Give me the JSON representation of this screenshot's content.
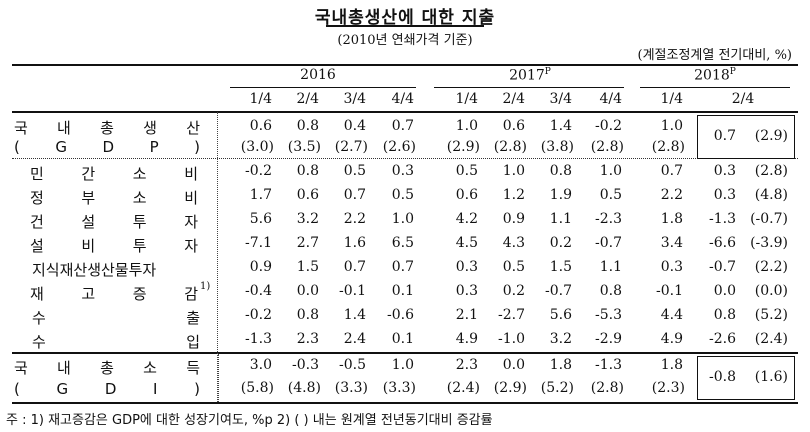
{
  "title": "국내총생산에 대한 지출",
  "subtitle": "(2010년 연쇄가격 기준)",
  "unit_note": "(계절조정계열 전기대비, %)",
  "years": [
    {
      "label": "2016",
      "sup": ""
    },
    {
      "label": "2017",
      "sup": "P"
    },
    {
      "label": "2018",
      "sup": "P"
    }
  ],
  "quarters": [
    "1/4",
    "2/4",
    "3/4",
    "4/4",
    "1/4",
    "2/4",
    "3/4",
    "4/4",
    "1/4",
    "2/4"
  ],
  "gdp": {
    "label1": "국 내 총 생 산",
    "label2": "( G D P )",
    "growth": [
      "0.6",
      "0.8",
      "0.4",
      "0.7",
      "1.0",
      "0.6",
      "1.4",
      "-0.2",
      "1.0"
    ],
    "yoy": [
      "(3.0)",
      "(3.5)",
      "(2.7)",
      "(2.6)",
      "(2.9)",
      "(2.8)",
      "(3.8)",
      "(2.8)",
      "(2.8)"
    ],
    "latest_growth": "0.7",
    "latest_yoy": "(2.9)"
  },
  "components": [
    {
      "label": "민 간 소 비",
      "sup": "",
      "values": [
        "-0.2",
        "0.8",
        "0.5",
        "0.3",
        "0.5",
        "1.0",
        "0.8",
        "1.0",
        "0.7"
      ],
      "latest": "0.3",
      "latest_yoy": "(2.8)"
    },
    {
      "label": "정 부 소 비",
      "sup": "",
      "values": [
        "1.7",
        "0.6",
        "0.7",
        "0.5",
        "0.6",
        "1.2",
        "1.9",
        "0.5",
        "2.2"
      ],
      "latest": "0.3",
      "latest_yoy": "(4.8)"
    },
    {
      "label": "건 설 투 자",
      "sup": "",
      "values": [
        "5.6",
        "3.2",
        "2.2",
        "1.0",
        "4.2",
        "0.9",
        "1.1",
        "-2.3",
        "1.8"
      ],
      "latest": "-1.3",
      "latest_yoy": "(-0.7)"
    },
    {
      "label": "설 비 투 자",
      "sup": "",
      "values": [
        "-7.1",
        "2.7",
        "1.6",
        "6.5",
        "4.5",
        "4.3",
        "0.2",
        "-0.7",
        "3.4"
      ],
      "latest": "-6.6",
      "latest_yoy": "(-3.9)"
    },
    {
      "label": "지식재산생산물투자",
      "sup": "",
      "values": [
        "0.9",
        "1.5",
        "0.7",
        "0.7",
        "0.3",
        "0.5",
        "1.5",
        "1.1",
        "0.3"
      ],
      "latest": "-0.7",
      "latest_yoy": "(2.2)"
    },
    {
      "label": "재 고 증 감",
      "sup": "1)",
      "values": [
        "-0.4",
        "0.0",
        "-0.1",
        "0.1",
        "0.3",
        "0.2",
        "-0.7",
        "0.8",
        "-0.1"
      ],
      "latest": "0.0",
      "latest_yoy": "(0.0)"
    },
    {
      "label": "수          출",
      "sup": "",
      "values": [
        "-0.2",
        "0.8",
        "1.4",
        "-0.6",
        "2.1",
        "-2.7",
        "5.6",
        "-5.3",
        "4.4"
      ],
      "latest": "0.8",
      "latest_yoy": "(5.2)"
    },
    {
      "label": "수          입",
      "sup": "",
      "values": [
        "-1.3",
        "2.3",
        "2.4",
        "0.1",
        "4.9",
        "-1.0",
        "3.2",
        "-2.9",
        "4.9"
      ],
      "latest": "-2.6",
      "latest_yoy": "(2.4)"
    }
  ],
  "gdi": {
    "label1": "국 내 총 소 득",
    "label2": "( G D I )",
    "growth": [
      "3.0",
      "-0.3",
      "-0.5",
      "1.0",
      "2.3",
      "0.0",
      "1.8",
      "-1.3",
      "1.8"
    ],
    "yoy": [
      "(5.8)",
      "(4.8)",
      "(3.3)",
      "(3.3)",
      "(2.4)",
      "(2.9)",
      "(5.2)",
      "(2.8)",
      "(2.3)"
    ],
    "latest_growth": "-0.8",
    "latest_yoy": "(1.6)"
  },
  "footnote": "주 : 1) 재고증감은 GDP에 대한 성장기여도, %p    2) ( ) 내는 원계열 전년동기대비 증감률"
}
